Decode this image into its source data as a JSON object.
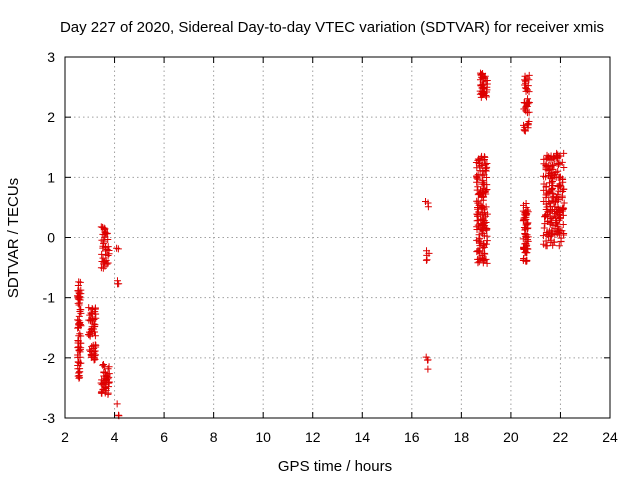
{
  "chart_data": {
    "type": "scatter",
    "title": "Day 227 of 2020, Sidereal Day-to-day VTEC variation (SDTVAR) for receiver xmis",
    "xlabel": "GPS time / hours",
    "ylabel": "SDTVAR / TECUs",
    "xlim": [
      2,
      24
    ],
    "ylim": [
      -3,
      3
    ],
    "x_ticks": [
      2,
      4,
      6,
      8,
      10,
      12,
      14,
      16,
      18,
      20,
      22,
      24
    ],
    "y_ticks": [
      -3,
      -2,
      -1,
      0,
      1,
      2,
      3
    ],
    "grid": true,
    "marker": "+",
    "color": "#dd0000",
    "series": [
      {
        "name": "SDTVAR",
        "clusters": [
          {
            "x_range": [
              2.5,
              2.65
            ],
            "y_range": [
              -2.35,
              -0.7
            ],
            "n": 70
          },
          {
            "x_range": [
              2.95,
              3.25
            ],
            "y_range": [
              -2.05,
              -1.15
            ],
            "n": 60
          },
          {
            "x_range": [
              3.45,
              3.8
            ],
            "y_range": [
              -2.65,
              -2.1
            ],
            "n": 45
          },
          {
            "x_range": [
              3.45,
              3.8
            ],
            "y_range": [
              -0.55,
              0.2
            ],
            "n": 40
          },
          {
            "x_range": [
              4.05,
              4.2
            ],
            "y_range": [
              -0.8,
              -0.7
            ],
            "n": 3
          },
          {
            "x_range": [
              4.05,
              4.2
            ],
            "y_range": [
              -0.22,
              -0.15
            ],
            "n": 2
          },
          {
            "x_range": [
              4.05,
              4.2
            ],
            "y_range": [
              -3.0,
              -2.7
            ],
            "n": 3
          },
          {
            "x_range": [
              16.55,
              16.7
            ],
            "y_range": [
              0.45,
              0.6
            ],
            "n": 3
          },
          {
            "x_range": [
              16.55,
              16.7
            ],
            "y_range": [
              -0.45,
              -0.05
            ],
            "n": 5
          },
          {
            "x_range": [
              16.55,
              16.7
            ],
            "y_range": [
              -2.3,
              -1.9
            ],
            "n": 4
          },
          {
            "x_range": [
              18.6,
              19.05
            ],
            "y_range": [
              -0.45,
              1.35
            ],
            "n": 150
          },
          {
            "x_range": [
              18.75,
              19.05
            ],
            "y_range": [
              2.3,
              2.75
            ],
            "n": 40
          },
          {
            "x_range": [
              20.5,
              20.7
            ],
            "y_range": [
              -0.4,
              0.6
            ],
            "n": 60
          },
          {
            "x_range": [
              20.5,
              20.75
            ],
            "y_range": [
              1.75,
              2.7
            ],
            "n": 40
          },
          {
            "x_range": [
              21.3,
              22.15
            ],
            "y_range": [
              -0.15,
              1.4
            ],
            "n": 200
          }
        ]
      }
    ]
  }
}
